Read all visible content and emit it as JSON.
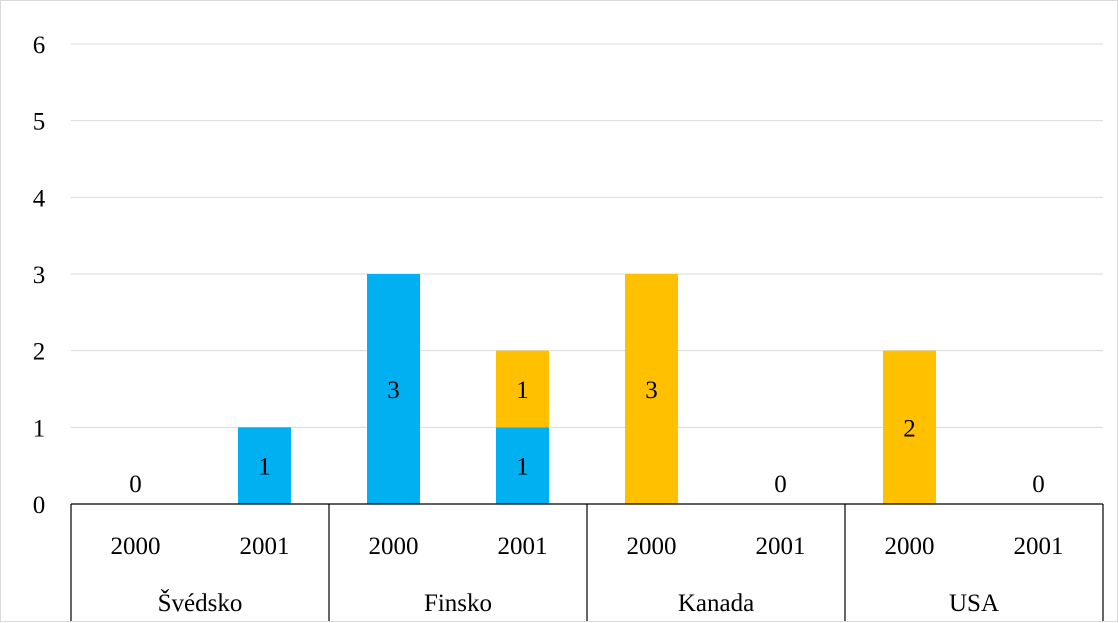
{
  "chart_data": {
    "type": "bar",
    "stacked": true,
    "ylim": [
      0,
      6
    ],
    "yticks": [
      0,
      1,
      2,
      3,
      4,
      5,
      6
    ],
    "grid": true,
    "groups": [
      {
        "label": "Švédsko",
        "categories": [
          "2000",
          "2001"
        ]
      },
      {
        "label": "Finsko",
        "categories": [
          "2000",
          "2001"
        ]
      },
      {
        "label": "Kanada",
        "categories": [
          "2000",
          "2001"
        ]
      },
      {
        "label": "USA",
        "categories": [
          "2000",
          "2001"
        ]
      }
    ],
    "categories": [
      "2000",
      "2001",
      "2000",
      "2001",
      "2000",
      "2001",
      "2000",
      "2001"
    ],
    "series": [
      {
        "color": "#00B0F0",
        "values": [
          0,
          1,
          3,
          1,
          0,
          0,
          0,
          0
        ]
      },
      {
        "color": "#FFC000",
        "values": [
          0,
          0,
          0,
          1,
          3,
          0,
          2,
          0
        ]
      }
    ],
    "zero_labels": [
      "0",
      "",
      "",
      "",
      "",
      "0",
      "",
      "0"
    ],
    "title": "",
    "xlabel": "",
    "ylabel": ""
  }
}
